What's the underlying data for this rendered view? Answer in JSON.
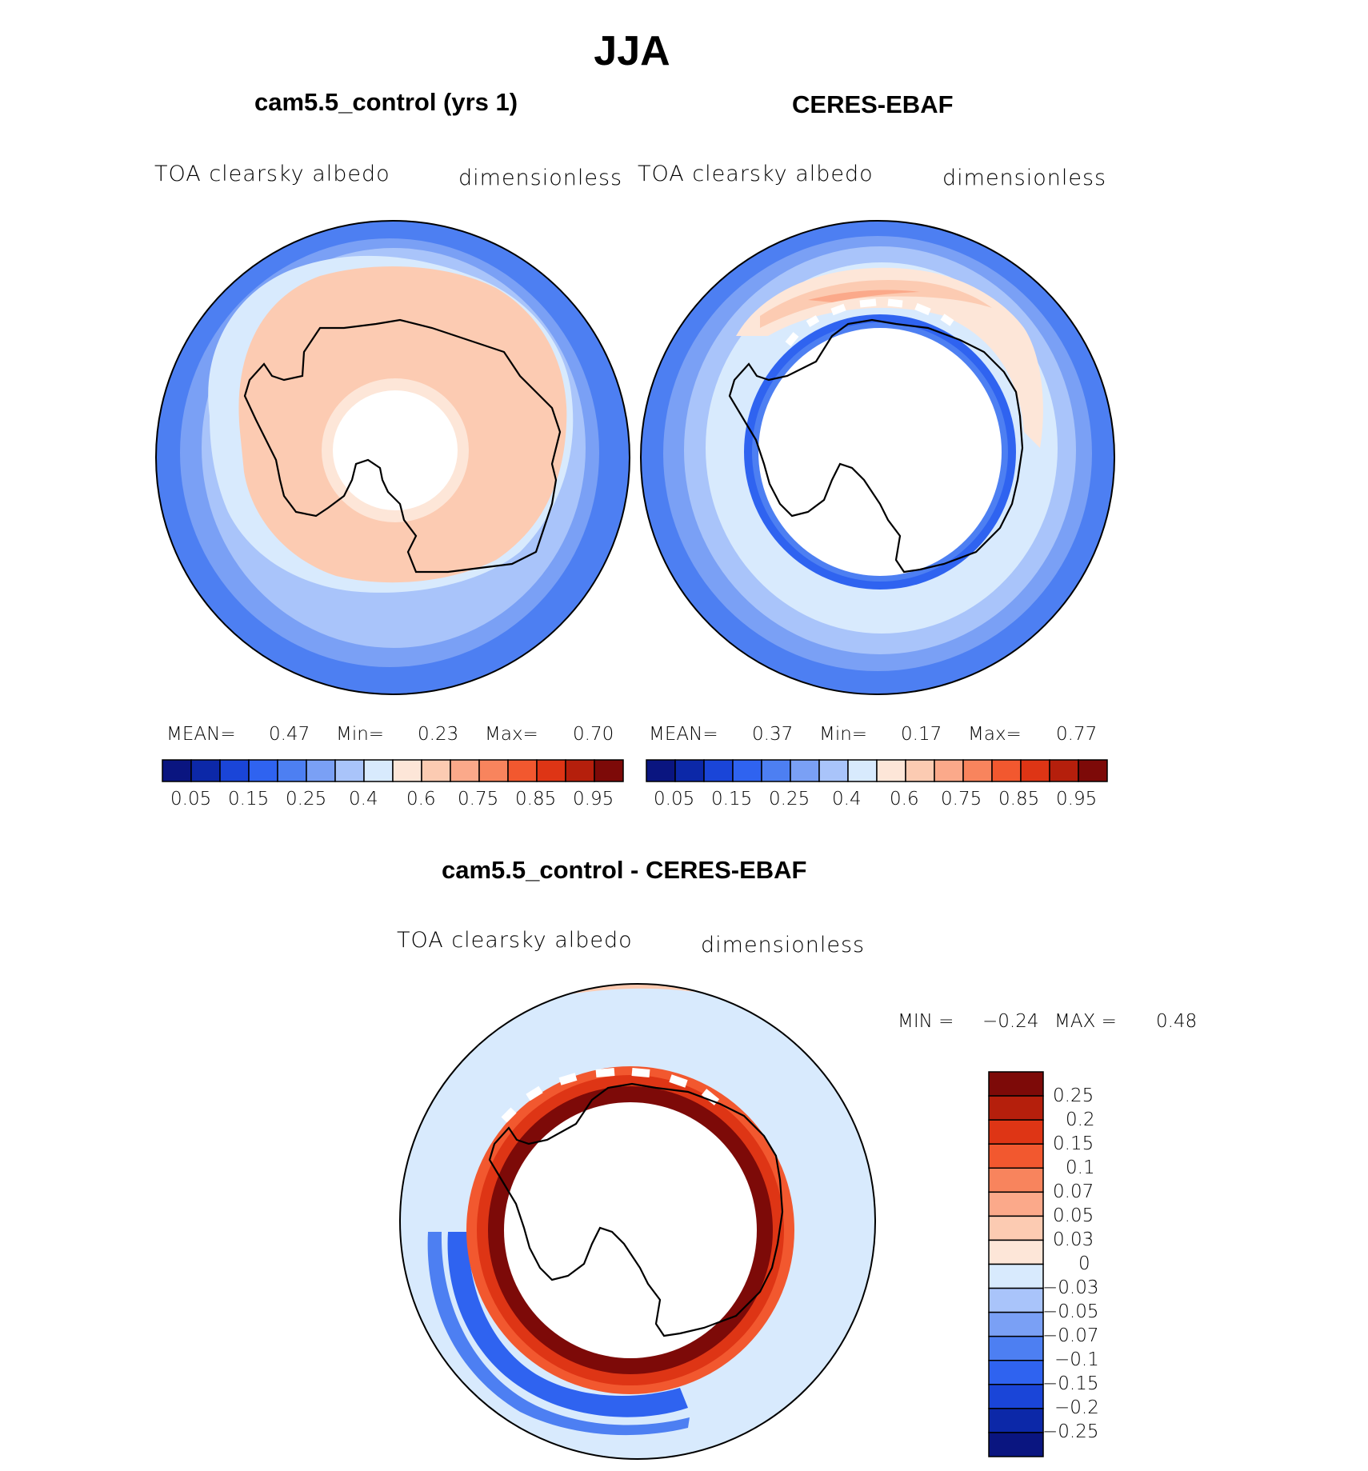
{
  "figure": {
    "title": "JJA"
  },
  "panels": [
    {
      "title": "cam5.5_control (yrs 1)",
      "variable": "TOA clearsky albedo",
      "units": "dimensionless",
      "stats": {
        "mean_label": "MEAN=",
        "mean": "0.47",
        "min_label": "Min=",
        "min": "0.23",
        "max_label": "Max=",
        "max": "0.70"
      }
    },
    {
      "title": "CERES-EBAF",
      "variable": "TOA clearsky albedo",
      "units": "dimensionless",
      "stats": {
        "mean_label": "MEAN=",
        "mean": "0.37",
        "min_label": "Min=",
        "min": "0.17",
        "max_label": "Max=",
        "max": "0.77"
      }
    },
    {
      "title": "cam5.5_control - CERES-EBAF",
      "variable": "TOA clearsky albedo",
      "units": "dimensionless",
      "stats": {
        "min_label": "MIN =",
        "min": "−0.24",
        "max_label": "MAX =",
        "max": "0.48"
      }
    }
  ],
  "colorbars": {
    "albedo": {
      "colors": [
        "#0a1580",
        "#0c28a8",
        "#1a45d8",
        "#2f63f0",
        "#4d7ff2",
        "#7aa0f5",
        "#a9c4fa",
        "#d8eafd",
        "#fde6d8",
        "#fccbb2",
        "#fba98a",
        "#f8845d",
        "#f2582f",
        "#de3515",
        "#b51f0c",
        "#7d0a08"
      ],
      "tick_labels": [
        "0.05",
        "0.15",
        "0.25",
        "0.4",
        "0.6",
        "0.75",
        "0.85",
        "0.95"
      ]
    },
    "difference": {
      "colors": [
        "#0a1580",
        "#0c28a8",
        "#1a45d8",
        "#2f63f0",
        "#4d7ff2",
        "#7aa0f5",
        "#a9c4fa",
        "#d8eafd",
        "#fde6d8",
        "#fccbb2",
        "#fba98a",
        "#f8845d",
        "#f2582f",
        "#de3515",
        "#b51f0c",
        "#7d0a08"
      ],
      "tick_labels": [
        "−0.25",
        "−0.2",
        "−0.15",
        "−0.1",
        "−0.07",
        "−0.05",
        "−0.03",
        "0",
        "0.03",
        "0.05",
        "0.07",
        "0.1",
        "0.15",
        "0.2",
        "0.25"
      ]
    }
  }
}
